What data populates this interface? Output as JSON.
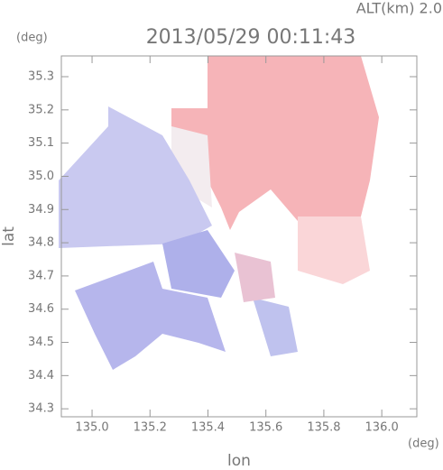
{
  "chart_data": {
    "type": "map",
    "title": "2013/05/29 00:11:43",
    "subtitle": "ALT(km) 2.0",
    "x_label": "lon",
    "y_label": "lat",
    "x_unit": "(deg)",
    "y_unit": "(deg)",
    "xlim": [
      134.894,
      136.121
    ],
    "ylim": [
      34.276,
      35.3625
    ],
    "xticks": [
      {
        "value": 135,
        "label": "135.0"
      },
      135.2,
      135.4,
      135.6,
      135.8,
      {
        "value": 136,
        "label": "136.0"
      }
    ],
    "yticks": [
      34.3,
      34.4,
      34.5,
      34.6,
      34.7,
      34.8,
      34.9,
      {
        "value": 35,
        "label": "35.0"
      },
      35.1,
      35.2,
      35.3
    ]
  }
}
